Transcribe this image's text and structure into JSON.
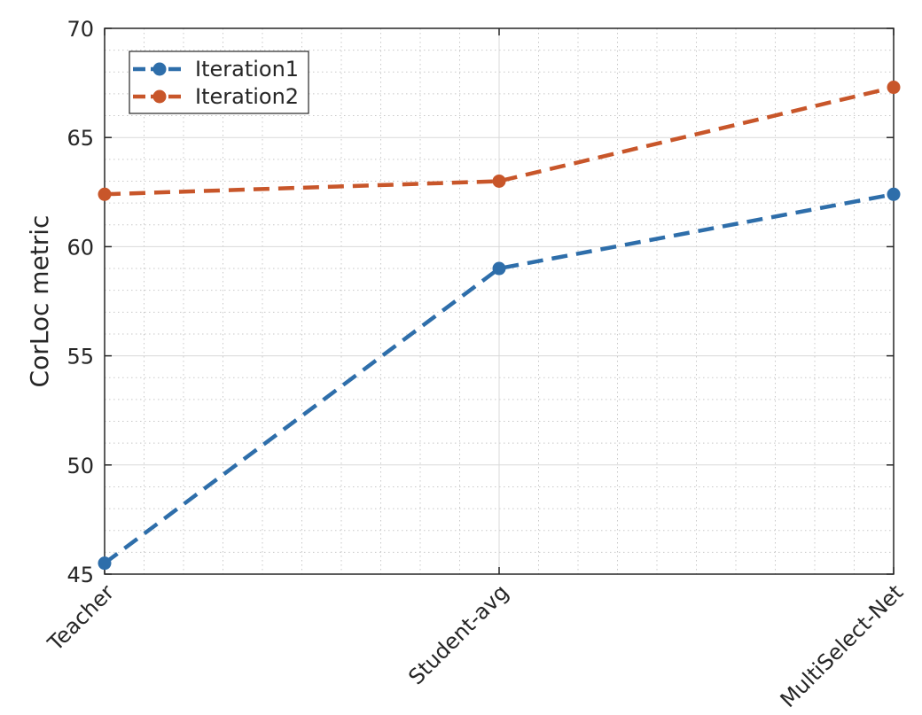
{
  "chart_data": {
    "type": "line",
    "categories": [
      "Teacher",
      "Student-avg",
      "MultiSelect-Net"
    ],
    "series": [
      {
        "name": "Iteration1",
        "values": [
          45.5,
          59.0,
          62.4
        ],
        "color": "#2E6EAA"
      },
      {
        "name": "Iteration2",
        "values": [
          62.4,
          63.0,
          67.3
        ],
        "color": "#C8562A"
      }
    ],
    "title": "",
    "xlabel": "",
    "ylabel": "CorLoc metric",
    "ylim": [
      45,
      70
    ],
    "yticks": [
      45,
      50,
      55,
      60,
      65,
      70
    ],
    "grid": true,
    "minor_grid": true,
    "legend": "top-left",
    "line_style": "dashed",
    "marker": "circle"
  }
}
